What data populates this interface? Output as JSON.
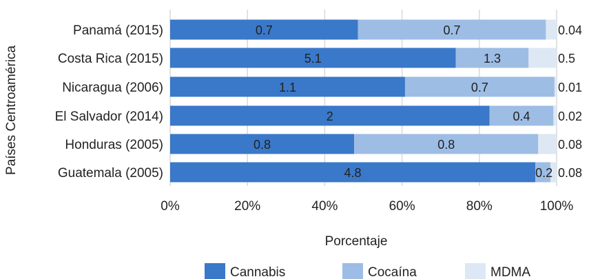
{
  "chart_data": {
    "type": "bar",
    "orientation": "horizontal",
    "stacked": "percent",
    "categories": [
      "Panamá (2015)",
      "Costa Rica (2015)",
      "Nicaragua (2006)",
      "El Salvador (2014)",
      "Honduras (2005)",
      "Guatemala (2005)"
    ],
    "series": [
      {
        "name": "Cannabis",
        "color": "#3a78c9",
        "values": [
          0.7,
          5.1,
          1.1,
          2,
          0.8,
          4.8
        ]
      },
      {
        "name": "Cocaína",
        "color": "#9dbde5",
        "values": [
          0.7,
          1.3,
          0.7,
          0.4,
          0.8,
          0.2
        ]
      },
      {
        "name": "MDMA",
        "color": "#dde8f4",
        "values": [
          0.04,
          0.5,
          0.01,
          0.02,
          0.08,
          0.08
        ]
      }
    ],
    "data_labels": [
      [
        "0.7",
        "5.1",
        "1.1",
        "2",
        "0.8",
        "4.8"
      ],
      [
        "0.7",
        "1.3",
        "0.7",
        "0.4",
        "0.8",
        "0.2"
      ],
      [
        "0.04",
        "0.5",
        "0.01",
        "0.02",
        "0.08",
        "0.08"
      ]
    ],
    "x_ticks": [
      "0%",
      "20%",
      "40%",
      "60%",
      "80%",
      "100%"
    ],
    "xlim": [
      0,
      100
    ],
    "xlabel": "Porcentaje",
    "ylabel": "Países Centroamérica",
    "title": "",
    "grid": "vertical",
    "legend_position": "bottom"
  }
}
